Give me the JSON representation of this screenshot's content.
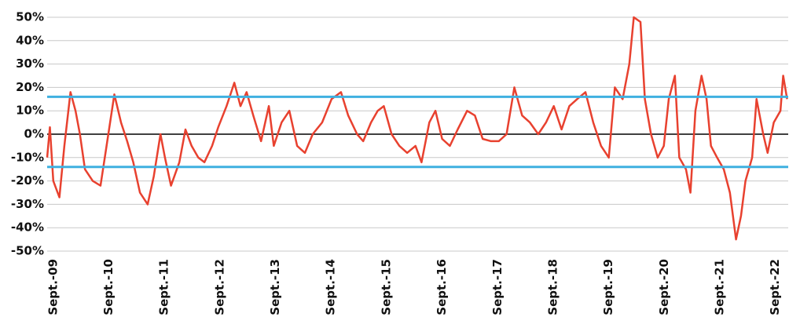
{
  "chart_data": {
    "type": "line",
    "x": [
      2009.56,
      2009.61,
      2009.67,
      2009.78,
      2009.87,
      2009.98,
      2010.07,
      2010.15,
      2010.24,
      2010.38,
      2010.52,
      2010.63,
      2010.77,
      2010.89,
      2011.0,
      2011.11,
      2011.23,
      2011.37,
      2011.48,
      2011.6,
      2011.68,
      2011.79,
      2011.94,
      2012.05,
      2012.16,
      2012.28,
      2012.39,
      2012.53,
      2012.64,
      2012.79,
      2012.93,
      2013.04,
      2013.15,
      2013.27,
      2013.41,
      2013.55,
      2013.64,
      2013.78,
      2013.92,
      2014.06,
      2014.2,
      2014.34,
      2014.51,
      2014.68,
      2014.85,
      2014.98,
      2015.14,
      2015.25,
      2015.39,
      2015.51,
      2015.62,
      2015.76,
      2015.9,
      2016.04,
      2016.19,
      2016.3,
      2016.44,
      2016.55,
      2016.67,
      2016.81,
      2016.95,
      2017.12,
      2017.26,
      2017.4,
      2017.55,
      2017.69,
      2017.83,
      2017.97,
      2018.11,
      2018.25,
      2018.4,
      2018.54,
      2018.68,
      2018.82,
      2018.96,
      2019.1,
      2019.25,
      2019.39,
      2019.53,
      2019.67,
      2019.78,
      2019.92,
      2020.04,
      2020.12,
      2020.24,
      2020.32,
      2020.43,
      2020.55,
      2020.66,
      2020.75,
      2020.86,
      2020.94,
      2021.06,
      2021.14,
      2021.23,
      2021.34,
      2021.43,
      2021.51,
      2021.62,
      2021.74,
      2021.85,
      2021.96,
      2022.05,
      2022.13,
      2022.25,
      2022.33,
      2022.45,
      2022.53,
      2022.64,
      2022.76,
      2022.81,
      2022.88
    ],
    "series": [
      {
        "color": "#e8412f",
        "values": [
          -10,
          3,
          -20,
          -27,
          -5,
          18,
          10,
          0,
          -15,
          -20,
          -22,
          -5,
          17,
          5,
          -3,
          -12,
          -25,
          -30,
          -18,
          0,
          -10,
          -22,
          -12,
          2,
          -5,
          -10,
          -12,
          -5,
          3,
          12,
          22,
          12,
          18,
          8,
          -3,
          12,
          -5,
          5,
          10,
          -5,
          -8,
          0,
          5,
          15,
          18,
          8,
          0,
          -3,
          5,
          10,
          12,
          0,
          -5,
          -8,
          -5,
          -12,
          5,
          10,
          -2,
          -5,
          2,
          10,
          8,
          -2,
          -3,
          -3,
          0,
          20,
          8,
          5,
          0,
          5,
          12,
          2,
          12,
          15,
          18,
          5,
          -5,
          -10,
          20,
          15,
          30,
          50,
          48,
          15,
          0,
          -10,
          -5,
          15,
          25,
          -10,
          -15,
          -25,
          10,
          25,
          15,
          -5,
          -10,
          -15,
          -25,
          -45,
          -35,
          -20,
          -10,
          15,
          0,
          -8,
          5,
          10,
          25,
          15
        ]
      }
    ],
    "reference_lines": [
      16,
      -14
    ],
    "reference_color": "#3fb0e0",
    "xlim": [
      2009.56,
      2022.9
    ],
    "xticks": [
      {
        "value": 2009.67,
        "label": "Sept.-09"
      },
      {
        "value": 2010.67,
        "label": "Sept.-10"
      },
      {
        "value": 2011.67,
        "label": "Sept.-11"
      },
      {
        "value": 2012.67,
        "label": "Sept.-12"
      },
      {
        "value": 2013.67,
        "label": "Sept.-13"
      },
      {
        "value": 2014.67,
        "label": "Sept.-14"
      },
      {
        "value": 2015.67,
        "label": "Sept.-15"
      },
      {
        "value": 2016.67,
        "label": "Sept.-16"
      },
      {
        "value": 2017.67,
        "label": "Sept.-17"
      },
      {
        "value": 2018.67,
        "label": "Sept.-18"
      },
      {
        "value": 2019.67,
        "label": "Sept.-19"
      },
      {
        "value": 2020.67,
        "label": "Sept.-20"
      },
      {
        "value": 2021.67,
        "label": "Sept.-21"
      },
      {
        "value": 2022.67,
        "label": "Sept.-22"
      }
    ],
    "ylim": [
      -50,
      50
    ],
    "yticks": [
      {
        "value": 50,
        "label": "50%"
      },
      {
        "value": 40,
        "label": "40%"
      },
      {
        "value": 30,
        "label": "30%"
      },
      {
        "value": 20,
        "label": "20%"
      },
      {
        "value": 10,
        "label": "10%"
      },
      {
        "value": 0,
        "label": "0%"
      },
      {
        "value": -10,
        "label": "-10%"
      },
      {
        "value": -20,
        "label": "-20%"
      },
      {
        "value": -30,
        "label": "-30%"
      },
      {
        "value": -40,
        "label": "-40%"
      },
      {
        "value": -50,
        "label": "-50%"
      }
    ],
    "grid": true
  }
}
